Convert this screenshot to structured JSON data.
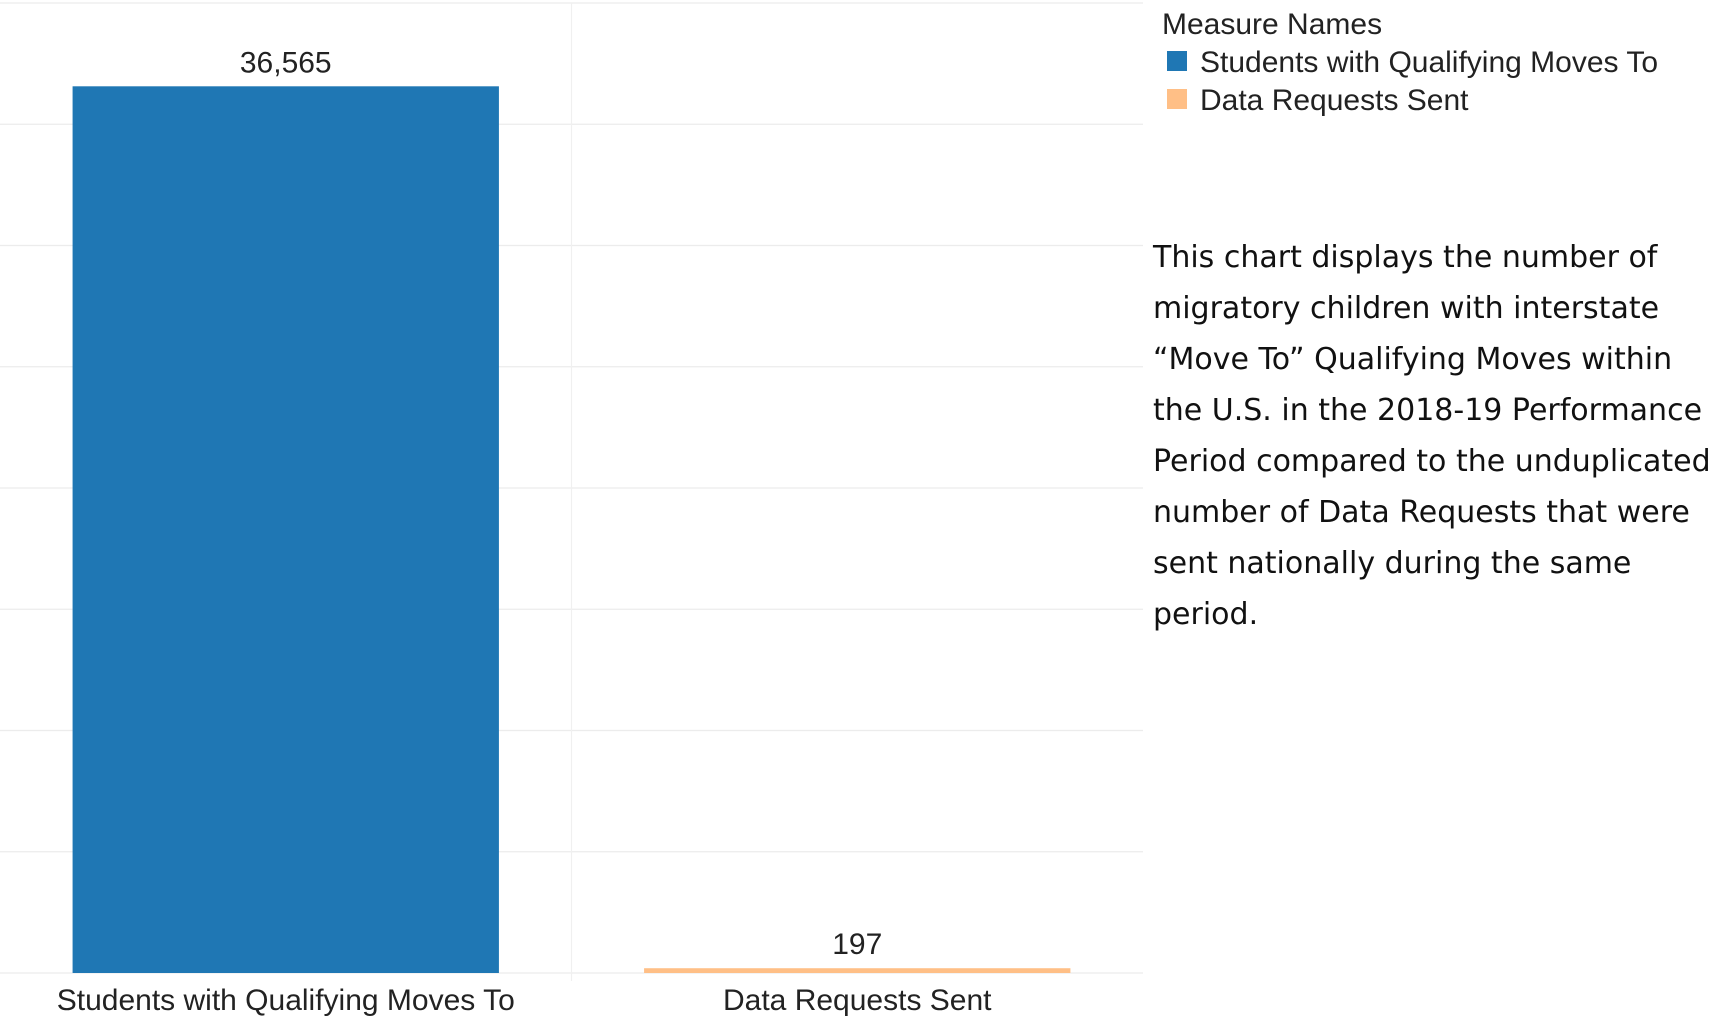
{
  "chart_data": {
    "type": "bar",
    "categories": [
      "Students with Qualifying Moves To",
      "Data Requests Sent"
    ],
    "values": [
      36565,
      197
    ],
    "value_labels": [
      "36,565",
      "197"
    ],
    "colors": [
      "#1f77b4",
      "#ffbf86"
    ],
    "ylim": [
      0,
      40000
    ],
    "yticks": [
      0,
      5000,
      10000,
      15000,
      20000,
      25000,
      30000,
      35000,
      40000
    ],
    "grid": true,
    "legend_title": "Measure Names",
    "annotation": "This chart displays the number of migratory children with interstate “Move To” Qualifying Moves within the U.S. in the 2018-19 Performance Period compared to the unduplicated number of Data Requests that were sent nationally during the same period."
  }
}
